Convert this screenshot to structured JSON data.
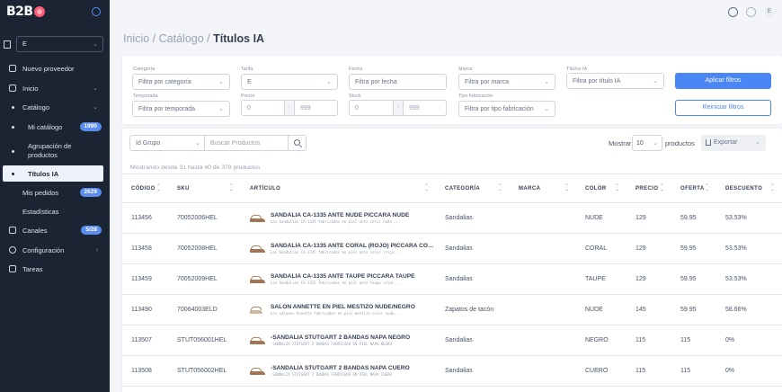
{
  "sidebar": {
    "logo": "B2B",
    "store_value": "E",
    "items": [
      {
        "label": "Nuevo proveedor"
      },
      {
        "label": "Inicio"
      },
      {
        "label": "Catálogo"
      },
      {
        "label": "Mi catálogo",
        "badge": "1990"
      },
      {
        "label": "Agrupación de productos"
      },
      {
        "label": "Títulos IA"
      },
      {
        "label": "Mis pedidos",
        "badge": "2629"
      },
      {
        "label": "Estadísticas"
      },
      {
        "label": "Canales",
        "badge": "5/28"
      },
      {
        "label": "Configuración"
      },
      {
        "label": "Tareas"
      }
    ]
  },
  "header": {
    "avatar": "E"
  },
  "breadcrumb": {
    "part1": "Inicio",
    "sep": "/",
    "part2": "Catálogo",
    "current": "Títulos IA"
  },
  "filters": {
    "categoria": {
      "label": "Categoría",
      "value": "Filtra por categoría"
    },
    "tarifa": {
      "label": "Tarifa",
      "value": "E"
    },
    "fecha": {
      "label": "Fecha",
      "value": "Filtra por fecha"
    },
    "marca": {
      "label": "Marca",
      "value": "Filtra por marca"
    },
    "titulos": {
      "label": "Títulos IA",
      "value": "Filtra por título IA"
    },
    "temporada": {
      "label": "Temporada",
      "value": "Filtra por temporada"
    },
    "precio": {
      "label": "Precio",
      "min": "0",
      "max": "999"
    },
    "stock": {
      "label": "Stock",
      "min": "0",
      "max": "999"
    },
    "tipo": {
      "label": "Tipo fabricación",
      "value": "Filtra por tipo fabricación"
    },
    "apply_label": "Aplicar filtros",
    "reset_label": "Reiniciar filtros"
  },
  "toolbar": {
    "group_value": "Id Grupo",
    "search_placeholder": "Buscar Productos",
    "show_label": "Mostrar",
    "show_value": "10",
    "show_after": "productos",
    "export_label": "Exportar",
    "showing_text": "Mostrando desde 31 hasta 40 de 378 productos"
  },
  "columns": [
    "CÓDIGO",
    "SKU",
    "ARTÍCULO",
    "CATEGORÍA",
    "MARCA",
    "COLOR",
    "PRECIO",
    "OFERTA",
    "DESCUENTO"
  ],
  "rows": [
    {
      "codigo": "113456",
      "sku": "70052006HEL",
      "title": "SANDALIA CA-1335 ANTE NUDE PICCARA NUDE",
      "desc": "Las Sandalias CA-1335 fabricadas en piel ante color nude ...",
      "categoria": "Sandalias",
      "marca": "",
      "color": "NUDE",
      "precio": "129",
      "oferta": "59.95",
      "descuento": "53.53%"
    },
    {
      "codigo": "113458",
      "sku": "70052008HEL",
      "title": "SANDALIA CA-1335 ANTE CORAL (ROJO) PICCARA CORAL",
      "desc": "Las Sandalias CA-1335 fabricadas en piel ante color (rojo...",
      "categoria": "Sandalias",
      "marca": "",
      "color": "CORAL",
      "precio": "129",
      "oferta": "59.95",
      "descuento": "53.53%"
    },
    {
      "codigo": "113459",
      "sku": "70052009HEL",
      "title": "SANDALIA CA-1335 ANTE TAUPE PICCARA TAUPE",
      "desc": "Las Sandalias CA-1335 fabricadas en piel ante taupe color...",
      "categoria": "Sandalias",
      "marca": "",
      "color": "TAUPE",
      "precio": "129",
      "oferta": "59.95",
      "descuento": "53.53%"
    },
    {
      "codigo": "113490",
      "sku": "70064003ELD",
      "title": "SALON ANNETTE EN PIEL MESTIZO NUDE/NEGRO",
      "desc": "Los salones Annette fabricados en piel mestizo color nude...",
      "categoria": "Zapatos de tacón",
      "marca": "",
      "color": "NUDE",
      "precio": "145",
      "oferta": "59.95",
      "descuento": "58.66%"
    },
    {
      "codigo": "113507",
      "sku": "STUT056001HEL",
      "title": "-SANDALIA STUTGART 2 BANDAS NAPA NEGRO",
      "desc": "-SANDALIA STUTGART 2 BANDAS FABRICADA EN PIEL NAPA NEGRO",
      "categoria": "Sandalias",
      "marca": "",
      "color": "NEGRO",
      "precio": "115",
      "oferta": "115",
      "descuento": "0%"
    },
    {
      "codigo": "113508",
      "sku": "STUT056002HEL",
      "title": "-SANDALIA STUTGART 2 BANDAS NAPA CUERO",
      "desc": "-SANDALIA STUTGART 2 BANDAS FABRICADA EN PIEL NAPA CUERO",
      "categoria": "Sandalias",
      "marca": "",
      "color": "CUERO",
      "precio": "115",
      "oferta": "115",
      "descuento": "0%"
    }
  ]
}
